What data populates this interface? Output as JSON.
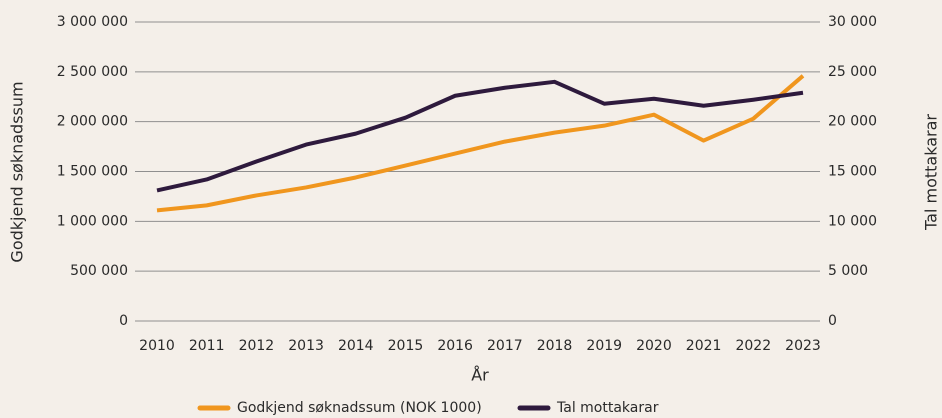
{
  "chart_data": {
    "type": "line",
    "categories": [
      "2010",
      "2011",
      "2012",
      "2013",
      "2014",
      "2015",
      "2016",
      "2017",
      "2018",
      "2019",
      "2020",
      "2021",
      "2022",
      "2023"
    ],
    "x_label": "År",
    "y_label": "Godkjend søknadssum",
    "y2_label": "Tal mottakarar",
    "series": [
      {
        "name": "Godkjend søknadssum (NOK 1000)",
        "color": "#f0961e",
        "values": [
          1110000,
          1160000,
          1260000,
          1340000,
          1440000,
          1560000,
          1680000,
          1800000,
          1890000,
          1960000,
          2070000,
          1810000,
          2030000,
          2460000
        ]
      },
      {
        "name": "Tal mottakarar",
        "color": "#2e1a3d",
        "axis": "y2",
        "values": [
          13100,
          14200,
          16000,
          17700,
          18800,
          20400,
          22600,
          23400,
          24000,
          21800,
          22300,
          21600,
          22200,
          22900
        ]
      }
    ],
    "ylim": [
      0,
      3000000
    ],
    "yticks": [
      0,
      {
        "value": 500000,
        "label": "500 000"
      },
      {
        "value": 1000000,
        "label": "1 000 000"
      },
      {
        "value": 1500000,
        "label": "1 500 000"
      },
      {
        "value": 2000000,
        "label": "2 000 000"
      },
      {
        "value": 2500000,
        "label": "2 500 000"
      },
      {
        "value": 3000000,
        "label": "3 000 000"
      }
    ],
    "y2lim": [
      0,
      30000
    ],
    "y2ticks": [
      0,
      {
        "value": 5000,
        "label": "5 000"
      },
      {
        "value": 10000,
        "label": "10 000"
      },
      {
        "value": 15000,
        "label": "15 000"
      },
      {
        "value": 20000,
        "label": "20 000"
      },
      {
        "value": 25000,
        "label": "25 000"
      },
      {
        "value": 30000,
        "label": "30 000"
      }
    ],
    "grid": true,
    "legend": "bottom"
  }
}
